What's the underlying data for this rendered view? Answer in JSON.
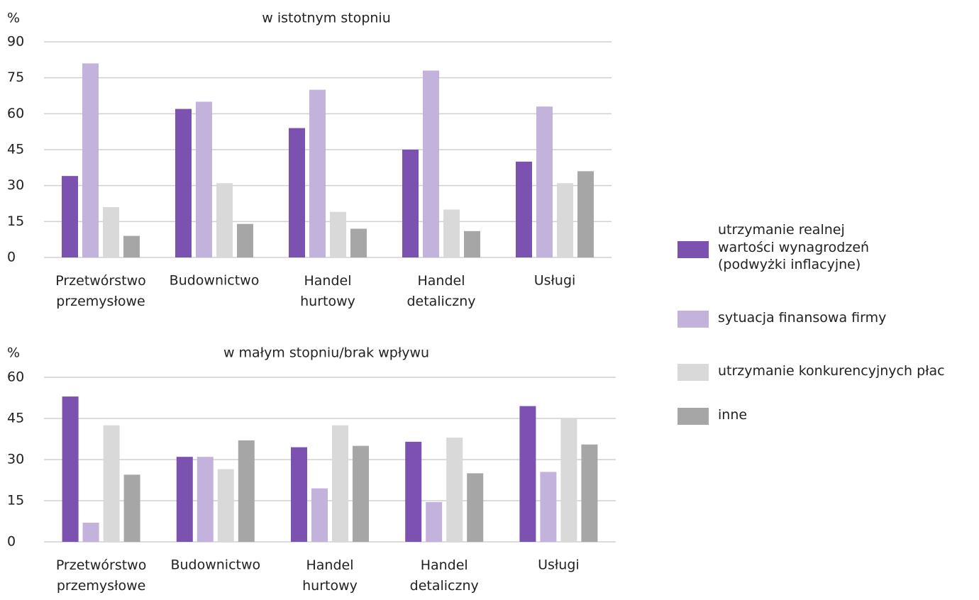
{
  "chart_data": [
    {
      "type": "bar",
      "title": "w istotnym stopniu",
      "y_label": "%",
      "categories": [
        "Przetwórstwo przemysłowe",
        "Budownictwo",
        "Handel hurtowy",
        "Handel detaliczny",
        "Usługi"
      ],
      "series": [
        {
          "name": "utrzymanie realnej wartości wynagrodzeń (podwyżki inflacyjne)",
          "color": "#7b52b0",
          "values": [
            34,
            62,
            54,
            45,
            40
          ]
        },
        {
          "name": "sytuacja finansowa firmy",
          "color": "#c3b3dc",
          "values": [
            81,
            65,
            70,
            78,
            63
          ]
        },
        {
          "name": "utrzymanie konkurencyjnych płac",
          "color": "#d9d9d9",
          "values": [
            21,
            31,
            19,
            20,
            31
          ]
        },
        {
          "name": "inne",
          "color": "#a6a6a6",
          "values": [
            9,
            14,
            12,
            11,
            36
          ]
        }
      ],
      "ylim": [
        0,
        90
      ],
      "yticks": [
        0,
        15,
        30,
        45,
        60,
        75,
        90
      ],
      "grid": true,
      "legend": "right"
    },
    {
      "type": "bar",
      "title": "w małym stopniu/brak wpływu",
      "y_label": "%",
      "categories": [
        "Przetwórstwo przemysłowe",
        "Budownictwo",
        "Handel hurtowy",
        "Handel detaliczny",
        "Usługi"
      ],
      "series": [
        {
          "values": [
            53,
            31,
            34.5,
            36.5,
            49.5
          ]
        },
        {
          "values": [
            7,
            31,
            19.5,
            14.5,
            25.5
          ]
        },
        {
          "values": [
            42.5,
            26.5,
            42.5,
            38,
            45
          ]
        },
        {
          "values": [
            24.5,
            37,
            35,
            25,
            35.5
          ]
        }
      ],
      "ylim": [
        0,
        60
      ],
      "yticks": [
        0,
        15,
        30,
        45,
        60
      ],
      "grid": true
    }
  ]
}
